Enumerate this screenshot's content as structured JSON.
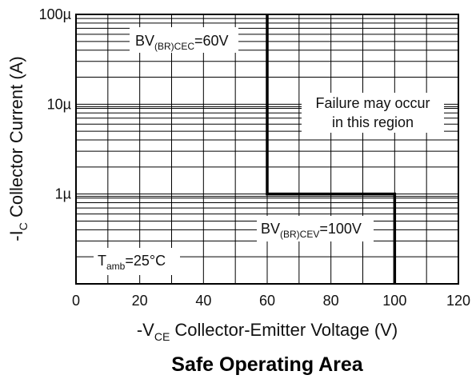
{
  "chart_data": {
    "type": "line",
    "title": "Safe Operating Area",
    "xlabel": {
      "prefix": "-V",
      "sub": "CE",
      "suffix": " Collector-Emitter Voltage (V)"
    },
    "ylabel": {
      "prefix": "-I",
      "sub": "C",
      "suffix": " Collector Current (A)"
    },
    "xlim": [
      0,
      120
    ],
    "ylim": [
      1e-07,
      0.0001
    ],
    "yscale": "log",
    "grid": true,
    "x_ticks": [
      0,
      20,
      40,
      60,
      80,
      100,
      120
    ],
    "x_tick_labels": [
      "0",
      "20",
      "40",
      "60",
      "80",
      "100",
      "120"
    ],
    "y_ticks": [
      0.0001,
      1e-05,
      1e-06
    ],
    "y_tick_labels": [
      "100µ",
      "10µ",
      "1µ"
    ],
    "series": [
      {
        "color": "#000000",
        "x": [
          60,
          60,
          100,
          100
        ],
        "y": [
          0.0001,
          1e-06,
          1e-06,
          1e-07
        ]
      }
    ],
    "annotations": {
      "bv_cec": {
        "prefix": "BV",
        "sub": "(BR)CEC",
        "suffix": "=60V"
      },
      "failure_line1": "Failure may occur",
      "failure_line2": "in this region",
      "bv_cev": {
        "prefix": "BV",
        "sub": "(BR)CEV",
        "suffix": "=100V"
      },
      "tamb": {
        "prefix": "T",
        "sub": "amb",
        "suffix": "=25°C"
      }
    }
  }
}
